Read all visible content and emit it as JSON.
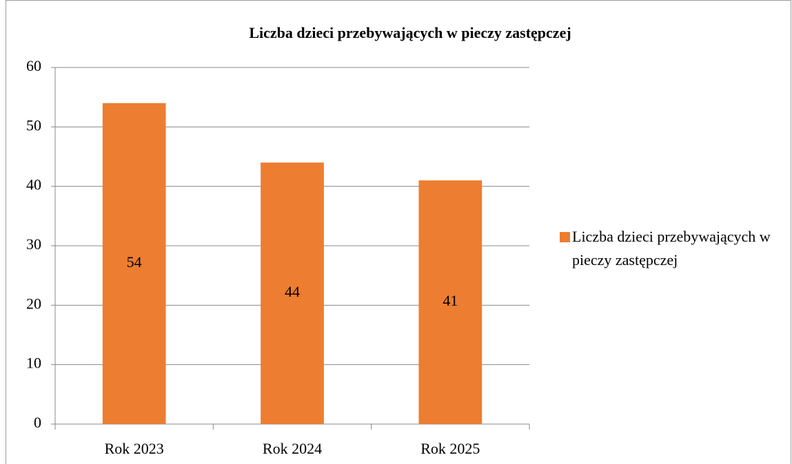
{
  "chart_data": {
    "type": "bar",
    "title": "Liczba dzieci przebywających w pieczy zastępczej",
    "categories": [
      "Rok 2023",
      "Rok 2024",
      "Rok 2025"
    ],
    "series": [
      {
        "name": "Liczba dzieci przebywających w pieczy zastępczej",
        "color": "#ed7d31",
        "values": [
          54,
          44,
          41
        ]
      }
    ],
    "ylim": [
      0,
      60
    ],
    "yticks": [
      0,
      10,
      20,
      30,
      40,
      50,
      60
    ],
    "grid": true,
    "legend": "right"
  }
}
